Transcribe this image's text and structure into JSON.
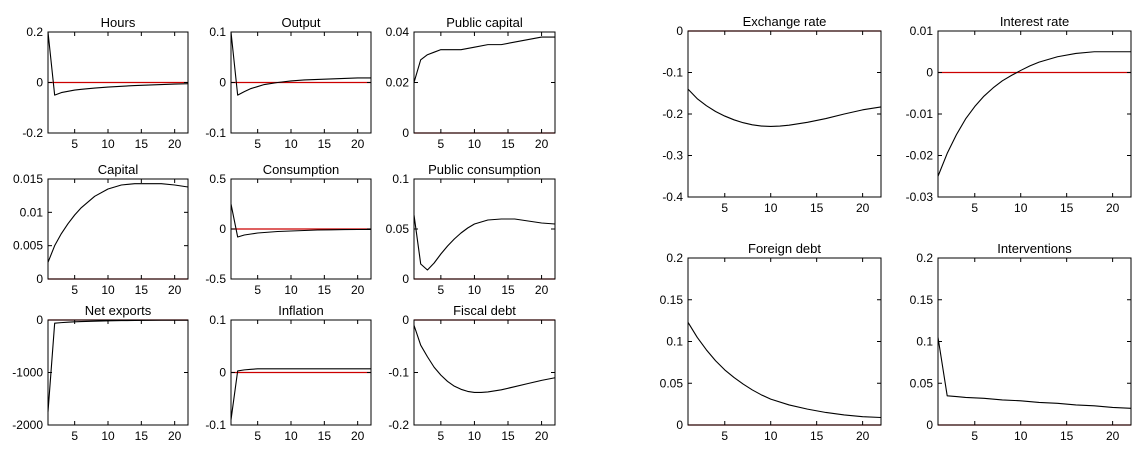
{
  "colors": {
    "series": "#000000",
    "zero_line": "#cc0000",
    "axes": "#000000",
    "background": "#ffffff"
  },
  "chart_data": [
    {
      "type": "line",
      "title": "Hours",
      "xlim": [
        1,
        22
      ],
      "ylim": [
        -0.2,
        0.2
      ],
      "xticks": [
        5,
        10,
        15,
        20
      ],
      "yticks": [
        -0.2,
        0,
        0.2
      ],
      "ytick_labels": [
        "-0.2",
        "0",
        "0.2"
      ],
      "zero_line": 0,
      "grid": false,
      "series": [
        {
          "x": [
            1,
            2,
            3,
            4,
            5,
            6,
            8,
            10,
            12,
            14,
            16,
            18,
            20,
            22
          ],
          "y": [
            0.2,
            -0.05,
            -0.04,
            -0.035,
            -0.03,
            -0.027,
            -0.022,
            -0.018,
            -0.015,
            -0.012,
            -0.01,
            -0.008,
            -0.006,
            -0.005
          ]
        }
      ]
    },
    {
      "type": "line",
      "title": "Output",
      "xlim": [
        1,
        22
      ],
      "ylim": [
        -0.1,
        0.1
      ],
      "xticks": [
        5,
        10,
        15,
        20
      ],
      "yticks": [
        -0.1,
        0,
        0.1
      ],
      "ytick_labels": [
        "-0.1",
        "0",
        "0.1"
      ],
      "zero_line": 0,
      "grid": false,
      "series": [
        {
          "x": [
            1,
            2,
            3,
            4,
            5,
            6,
            8,
            10,
            12,
            14,
            16,
            18,
            20,
            22
          ],
          "y": [
            0.1,
            -0.025,
            -0.018,
            -0.012,
            -0.008,
            -0.004,
            0.0,
            0.003,
            0.005,
            0.006,
            0.007,
            0.008,
            0.009,
            0.009
          ]
        }
      ]
    },
    {
      "type": "line",
      "title": "Public capital",
      "xlim": [
        1,
        22
      ],
      "ylim": [
        0,
        0.04
      ],
      "xticks": [
        5,
        10,
        15,
        20
      ],
      "yticks": [
        0,
        0.02,
        0.04
      ],
      "ytick_labels": [
        "0",
        "0.02",
        "0.04"
      ],
      "zero_line": 0,
      "grid": false,
      "series": [
        {
          "x": [
            1,
            2,
            3,
            4,
            5,
            6,
            8,
            10,
            12,
            14,
            16,
            18,
            20,
            22
          ],
          "y": [
            0.02,
            0.029,
            0.031,
            0.032,
            0.033,
            0.033,
            0.033,
            0.034,
            0.035,
            0.035,
            0.036,
            0.037,
            0.038,
            0.038
          ]
        }
      ]
    },
    {
      "type": "line",
      "title": "Capital",
      "xlim": [
        1,
        22
      ],
      "ylim": [
        0,
        0.015
      ],
      "xticks": [
        5,
        10,
        15,
        20
      ],
      "yticks": [
        0,
        0.005,
        0.01,
        0.015
      ],
      "ytick_labels": [
        "0",
        "0.005",
        "0.01",
        "0.015"
      ],
      "zero_line": 0,
      "grid": false,
      "series": [
        {
          "x": [
            1,
            2,
            3,
            4,
            5,
            6,
            8,
            10,
            12,
            14,
            16,
            18,
            20,
            22
          ],
          "y": [
            0.0025,
            0.005,
            0.0068,
            0.0083,
            0.0096,
            0.0107,
            0.0124,
            0.0135,
            0.0141,
            0.0143,
            0.0143,
            0.0143,
            0.0141,
            0.0138
          ]
        }
      ]
    },
    {
      "type": "line",
      "title": "Consumption",
      "xlim": [
        1,
        22
      ],
      "ylim": [
        -0.5,
        0.5
      ],
      "xticks": [
        5,
        10,
        15,
        20
      ],
      "yticks": [
        -0.5,
        0,
        0.5
      ],
      "ytick_labels": [
        "-0.5",
        "0",
        "0.5"
      ],
      "zero_line": 0,
      "grid": false,
      "series": [
        {
          "x": [
            1,
            2,
            3,
            4,
            5,
            6,
            8,
            10,
            12,
            14,
            16,
            18,
            20,
            22
          ],
          "y": [
            0.25,
            -0.08,
            -0.06,
            -0.05,
            -0.04,
            -0.035,
            -0.025,
            -0.02,
            -0.015,
            -0.01,
            -0.008,
            -0.006,
            -0.005,
            -0.004
          ]
        }
      ]
    },
    {
      "type": "line",
      "title": "Public consumption",
      "xlim": [
        1,
        22
      ],
      "ylim": [
        0,
        0.1
      ],
      "xticks": [
        5,
        10,
        15,
        20
      ],
      "yticks": [
        0,
        0.05,
        0.1
      ],
      "ytick_labels": [
        "0",
        "0.05",
        "0.1"
      ],
      "zero_line": 0,
      "grid": false,
      "series": [
        {
          "x": [
            1,
            2,
            3,
            4,
            5,
            6,
            7,
            8,
            9,
            10,
            12,
            14,
            16,
            18,
            20,
            22
          ],
          "y": [
            0.064,
            0.015,
            0.009,
            0.016,
            0.025,
            0.033,
            0.04,
            0.046,
            0.051,
            0.055,
            0.059,
            0.06,
            0.06,
            0.058,
            0.056,
            0.055
          ]
        }
      ]
    },
    {
      "type": "line",
      "title": "Net exports",
      "xlim": [
        1,
        22
      ],
      "ylim": [
        -2000,
        0
      ],
      "xticks": [
        5,
        10,
        15,
        20
      ],
      "yticks": [
        -2000,
        -1000,
        0
      ],
      "ytick_labels": [
        "-2000",
        "-1000",
        "0"
      ],
      "zero_line": 0,
      "grid": false,
      "series": [
        {
          "x": [
            1,
            2,
            3,
            4,
            5,
            6,
            8,
            10,
            12,
            14,
            16,
            18,
            20,
            22
          ],
          "y": [
            -1750,
            -60,
            -50,
            -42,
            -35,
            -30,
            -22,
            -16,
            -12,
            -9,
            -7,
            -5,
            -4,
            -3
          ]
        }
      ]
    },
    {
      "type": "line",
      "title": "Inflation",
      "xlim": [
        1,
        22
      ],
      "ylim": [
        -0.1,
        0.1
      ],
      "xticks": [
        5,
        10,
        15,
        20
      ],
      "yticks": [
        -0.1,
        0,
        0.1
      ],
      "ytick_labels": [
        "-0.1",
        "0",
        "0.1"
      ],
      "zero_line": 0,
      "grid": false,
      "series": [
        {
          "x": [
            1,
            2,
            3,
            4,
            5,
            6,
            8,
            10,
            12,
            14,
            16,
            18,
            20,
            22
          ],
          "y": [
            -0.09,
            0.003,
            0.005,
            0.006,
            0.007,
            0.007,
            0.007,
            0.007,
            0.007,
            0.007,
            0.007,
            0.007,
            0.007,
            0.007
          ]
        }
      ]
    },
    {
      "type": "line",
      "title": "Fiscal debt",
      "xlim": [
        1,
        22
      ],
      "ylim": [
        -0.2,
        0
      ],
      "xticks": [
        5,
        10,
        15,
        20
      ],
      "yticks": [
        -0.2,
        -0.1,
        0
      ],
      "ytick_labels": [
        "-0.2",
        "-0.1",
        "0"
      ],
      "zero_line": 0,
      "grid": false,
      "series": [
        {
          "x": [
            1,
            2,
            3,
            4,
            5,
            6,
            7,
            8,
            9,
            10,
            11,
            12,
            14,
            16,
            18,
            20,
            22
          ],
          "y": [
            -0.01,
            -0.048,
            -0.07,
            -0.09,
            -0.105,
            -0.117,
            -0.126,
            -0.132,
            -0.136,
            -0.138,
            -0.138,
            -0.137,
            -0.133,
            -0.127,
            -0.121,
            -0.115,
            -0.11
          ]
        }
      ]
    },
    {
      "type": "line",
      "title": "Exchange rate",
      "xlim": [
        1,
        22
      ],
      "ylim": [
        -0.4,
        0
      ],
      "xticks": [
        5,
        10,
        15,
        20
      ],
      "yticks": [
        -0.4,
        -0.3,
        -0.2,
        -0.1,
        0
      ],
      "ytick_labels": [
        "-0.4",
        "-0.3",
        "-0.2",
        "-0.1",
        "0"
      ],
      "zero_line": 0,
      "grid": false,
      "series": [
        {
          "x": [
            1,
            2,
            3,
            4,
            5,
            6,
            7,
            8,
            9,
            10,
            11,
            12,
            14,
            16,
            18,
            20,
            22
          ],
          "y": [
            -0.14,
            -0.163,
            -0.18,
            -0.194,
            -0.205,
            -0.214,
            -0.221,
            -0.226,
            -0.229,
            -0.23,
            -0.229,
            -0.227,
            -0.22,
            -0.211,
            -0.2,
            -0.19,
            -0.183
          ]
        }
      ]
    },
    {
      "type": "line",
      "title": "Interest rate",
      "xlim": [
        1,
        22
      ],
      "ylim": [
        -0.03,
        0.01
      ],
      "xticks": [
        5,
        10,
        15,
        20
      ],
      "yticks": [
        -0.03,
        -0.02,
        -0.01,
        0,
        0.01
      ],
      "ytick_labels": [
        "-0.03",
        "-0.02",
        "-0.01",
        "0",
        "0.01"
      ],
      "zero_line": 0,
      "grid": false,
      "series": [
        {
          "x": [
            1,
            2,
            3,
            4,
            5,
            6,
            7,
            8,
            9,
            10,
            11,
            12,
            14,
            16,
            18,
            20,
            22
          ],
          "y": [
            -0.025,
            -0.0195,
            -0.015,
            -0.0112,
            -0.0082,
            -0.0057,
            -0.0037,
            -0.002,
            -0.0007,
            0.0005,
            0.0016,
            0.0025,
            0.0038,
            0.0046,
            0.005,
            0.005,
            0.005
          ]
        }
      ]
    },
    {
      "type": "line",
      "title": "Foreign debt",
      "xlim": [
        1,
        22
      ],
      "ylim": [
        0,
        0.2
      ],
      "xticks": [
        5,
        10,
        15,
        20
      ],
      "yticks": [
        0,
        0.05,
        0.1,
        0.15,
        0.2
      ],
      "ytick_labels": [
        "0",
        "0.05",
        "0.1",
        "0.15",
        "0.2"
      ],
      "zero_line": 0,
      "grid": false,
      "series": [
        {
          "x": [
            1,
            2,
            3,
            4,
            5,
            6,
            7,
            8,
            9,
            10,
            12,
            14,
            16,
            18,
            20,
            22
          ],
          "y": [
            0.123,
            0.105,
            0.09,
            0.077,
            0.066,
            0.057,
            0.049,
            0.042,
            0.036,
            0.031,
            0.024,
            0.019,
            0.015,
            0.012,
            0.01,
            0.009
          ]
        }
      ]
    },
    {
      "type": "line",
      "title": "Interventions",
      "xlim": [
        1,
        22
      ],
      "ylim": [
        0,
        0.2
      ],
      "xticks": [
        5,
        10,
        15,
        20
      ],
      "yticks": [
        0,
        0.05,
        0.1,
        0.15,
        0.2
      ],
      "ytick_labels": [
        "0",
        "0.05",
        "0.1",
        "0.15",
        "0.2"
      ],
      "zero_line": 0,
      "grid": false,
      "series": [
        {
          "x": [
            1,
            2,
            3,
            4,
            6,
            8,
            10,
            12,
            14,
            16,
            18,
            20,
            22
          ],
          "y": [
            0.105,
            0.035,
            0.034,
            0.033,
            0.032,
            0.03,
            0.029,
            0.027,
            0.026,
            0.024,
            0.023,
            0.021,
            0.02
          ]
        }
      ]
    }
  ]
}
